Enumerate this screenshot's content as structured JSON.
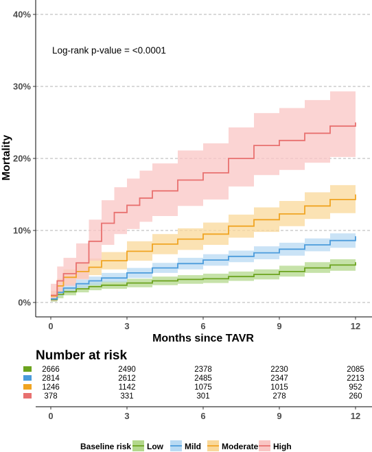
{
  "chart_data": {
    "type": "line",
    "ylabel": "Mortality",
    "xlabel": "Months since TAVR",
    "annotation": "Log-rank p-value = <0.0001",
    "xlim": [
      0,
      12
    ],
    "ylim": [
      0,
      40
    ],
    "x_ticks": [
      "0",
      "3",
      "6",
      "9",
      "12"
    ],
    "y_ticks": [
      "0%",
      "10%",
      "20%",
      "30%",
      "40%"
    ],
    "grid": "horizontal dashed",
    "series": [
      {
        "name": "Low",
        "color": "#6BA31E",
        "band_color": "#B3D88C",
        "x": [
          0,
          0.25,
          0.5,
          1,
          1.5,
          2,
          3,
          4,
          5,
          6,
          7,
          8,
          9,
          10,
          11,
          12
        ],
        "y": [
          0.4,
          1.1,
          1.5,
          1.9,
          2.2,
          2.4,
          2.7,
          3.0,
          3.2,
          3.3,
          3.6,
          3.9,
          4.3,
          4.8,
          5.2,
          5.6
        ],
        "lower": [
          0.1,
          0.6,
          1.0,
          1.4,
          1.7,
          1.9,
          2.1,
          2.4,
          2.6,
          2.7,
          3.0,
          3.2,
          3.6,
          4.1,
          4.4,
          4.8
        ],
        "upper": [
          0.8,
          1.6,
          2.0,
          2.4,
          2.8,
          3.0,
          3.3,
          3.6,
          3.8,
          4.0,
          4.3,
          4.6,
          5.1,
          5.6,
          6.0,
          6.4
        ]
      },
      {
        "name": "Mild",
        "color": "#4A9BDB",
        "band_color": "#B8DAF3",
        "x": [
          0,
          0.25,
          0.5,
          1,
          1.5,
          2,
          3,
          4,
          5,
          6,
          7,
          8,
          9,
          10,
          11,
          12
        ],
        "y": [
          0.5,
          1.4,
          2.0,
          2.6,
          3.0,
          3.4,
          4.1,
          4.8,
          5.4,
          5.9,
          6.4,
          6.9,
          7.4,
          8.0,
          8.6,
          9.2
        ],
        "lower": [
          0.2,
          0.9,
          1.4,
          2.0,
          2.4,
          2.8,
          3.4,
          4.1,
          4.6,
          5.1,
          5.6,
          6.0,
          6.5,
          7.1,
          7.6,
          8.2
        ],
        "upper": [
          0.9,
          2.0,
          2.6,
          3.2,
          3.6,
          4.1,
          4.8,
          5.5,
          6.2,
          6.7,
          7.2,
          7.8,
          8.3,
          8.9,
          9.6,
          10.2
        ]
      },
      {
        "name": "Moderate",
        "color": "#F0A422",
        "band_color": "#F9D89A",
        "x": [
          0,
          0.25,
          0.5,
          1,
          1.5,
          2,
          3,
          4,
          5,
          6,
          7,
          8,
          9,
          10,
          11,
          12
        ],
        "y": [
          0.9,
          2.3,
          3.5,
          4.3,
          4.9,
          5.8,
          7.1,
          8.1,
          8.8,
          9.5,
          10.6,
          11.5,
          12.3,
          13.4,
          14.3,
          15.0
        ],
        "lower": [
          0.3,
          1.5,
          2.5,
          3.3,
          3.8,
          4.6,
          5.8,
          6.7,
          7.3,
          8.0,
          9.0,
          9.8,
          10.6,
          11.6,
          12.4,
          13.1
        ],
        "upper": [
          1.6,
          3.3,
          4.6,
          5.4,
          6.1,
          7.0,
          8.5,
          9.5,
          10.3,
          11.1,
          12.2,
          13.2,
          14.1,
          15.3,
          16.3,
          17.1
        ]
      },
      {
        "name": "High",
        "color": "#E8706F",
        "band_color": "#F9C6C4",
        "x": [
          0,
          0.25,
          0.5,
          1,
          1.5,
          2,
          2.5,
          3,
          3.5,
          4,
          5,
          6,
          7,
          8,
          9,
          10,
          11,
          12
        ],
        "y": [
          1.0,
          3.0,
          4.0,
          5.5,
          8.5,
          11.0,
          12.5,
          13.5,
          14.5,
          15.5,
          17.0,
          18.0,
          20.0,
          21.8,
          22.5,
          23.5,
          24.5,
          25.0
        ],
        "lower": [
          0.2,
          1.5,
          2.3,
          3.2,
          5.8,
          8.0,
          9.5,
          10.2,
          11.2,
          12.0,
          13.4,
          14.3,
          16.1,
          17.7,
          18.4,
          19.4,
          20.2,
          20.7
        ],
        "upper": [
          2.6,
          5.0,
          6.2,
          8.2,
          11.5,
          14.2,
          16.0,
          17.2,
          18.3,
          19.3,
          21.1,
          22.1,
          24.3,
          26.3,
          27.0,
          28.1,
          29.3,
          29.8
        ]
      }
    ]
  },
  "risk_table": {
    "title": "Number at risk",
    "x_ticks": [
      "0",
      "3",
      "6",
      "9",
      "12"
    ],
    "rows": [
      {
        "color": "#6BA31E",
        "values": [
          "2666",
          "2490",
          "2378",
          "2230",
          "2085"
        ]
      },
      {
        "color": "#4A9BDB",
        "values": [
          "2814",
          "2612",
          "2485",
          "2347",
          "2213"
        ]
      },
      {
        "color": "#F0A422",
        "values": [
          "1246",
          "1142",
          "1075",
          "1015",
          "952"
        ]
      },
      {
        "color": "#E8706F",
        "values": [
          "378",
          "331",
          "301",
          "278",
          "260"
        ]
      }
    ]
  },
  "legend": {
    "title": "Baseline risk",
    "items": [
      {
        "label": "Low",
        "color": "#6BA31E",
        "fill": "#B3D88C"
      },
      {
        "label": "Mild",
        "color": "#4A9BDB",
        "fill": "#B8DAF3"
      },
      {
        "label": "Moderate",
        "color": "#F0A422",
        "fill": "#F9D89A"
      },
      {
        "label": "High",
        "color": "#E8706F",
        "fill": "#F9C6C4"
      }
    ]
  }
}
